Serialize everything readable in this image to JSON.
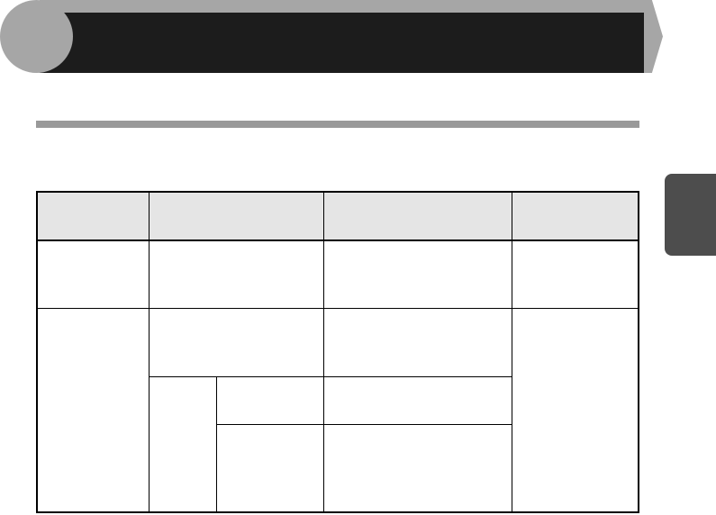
{
  "colors": {
    "banner_dark": "#1c1c1c",
    "banner_accent": "#a6a6a6",
    "section_rule": "#999999",
    "table_header_bg": "#e5e5e5",
    "side_tab": "#4d4d4d"
  },
  "table": {
    "header": [
      "",
      "",
      "",
      ""
    ],
    "rows": [
      [
        "",
        "",
        "",
        ""
      ],
      [
        "",
        "",
        "",
        ""
      ],
      [
        "",
        "",
        ""
      ],
      [
        "",
        ""
      ]
    ]
  }
}
